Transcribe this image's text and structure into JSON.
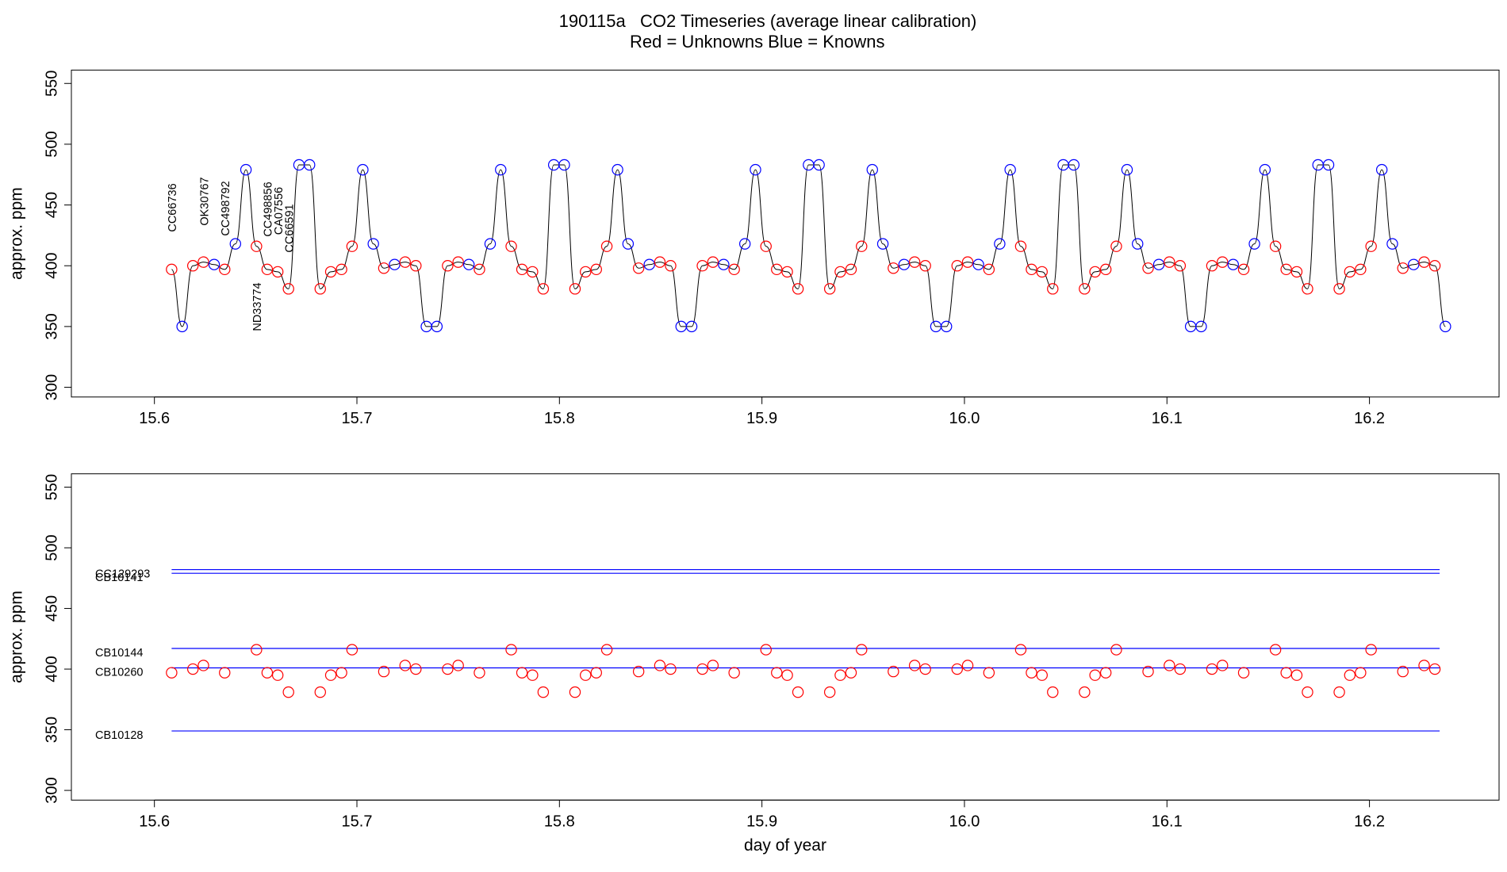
{
  "chart_data": [
    {
      "type": "line",
      "title": "190115a   CO2 Timeseries (average linear calibration)",
      "subtitle_parts": [
        {
          "text": "Red = Unknowns",
          "color": "#ff0000"
        },
        {
          "text": "Blue = Knowns",
          "color": "#0000ff"
        }
      ],
      "ylabel": "approx. ppm",
      "xlim": [
        15.559,
        16.264
      ],
      "ylim": [
        292,
        561
      ],
      "xticks": [
        15.6,
        15.7,
        15.8,
        15.9,
        {
          "value": 16,
          "label": "16.0"
        },
        16.1,
        16.2
      ],
      "yticks": [
        300,
        350,
        400,
        450,
        500,
        550
      ],
      "series": [
        {
          "color": "#000000",
          "x": [
            15.6085,
            15.6137,
            15.619,
            15.6242,
            15.6295,
            15.6347,
            15.64,
            15.6452,
            15.6504,
            15.6557,
            15.6609,
            15.6662,
            15.6714,
            15.6766,
            15.6819,
            15.6871,
            15.6924,
            15.6976,
            15.7029,
            15.7081,
            15.7133,
            15.7186,
            15.7238,
            15.7291,
            15.7343,
            15.7395,
            15.7448,
            15.75,
            15.7553,
            15.7605,
            15.7658,
            15.771,
            15.7762,
            15.7815,
            15.7867,
            15.792,
            15.7972,
            15.8024,
            15.8077,
            15.8129,
            15.8182,
            15.8234,
            15.8287,
            15.8339,
            15.8391,
            15.8444,
            15.8496,
            15.8549,
            15.8601,
            15.8653,
            15.8706,
            15.8758,
            15.8811,
            15.8863,
            15.8916,
            15.8968,
            15.902,
            15.9073,
            15.9125,
            15.9178,
            15.923,
            15.9282,
            15.9335,
            15.9387,
            15.944,
            15.9492,
            15.9545,
            15.9597,
            15.9649,
            15.9702,
            15.9754,
            15.9807,
            15.9859,
            15.9911,
            15.9964,
            16.0016,
            16.0069,
            16.0121,
            16.0174,
            16.0226,
            16.0278,
            16.0331,
            16.0383,
            16.0436,
            16.0488,
            16.054,
            16.0593,
            16.0645,
            16.0698,
            16.075,
            16.0803,
            16.0855,
            16.0907,
            16.096,
            16.1012,
            16.1065,
            16.1117,
            16.1169,
            16.1222,
            16.1274,
            16.1327,
            16.1379,
            16.1432,
            16.1484,
            16.1536,
            16.1589,
            16.1641,
            16.1694,
            16.1746,
            16.1798,
            16.1851,
            16.1903,
            16.1956,
            16.2008,
            16.2061,
            16.2113,
            16.2165,
            16.2218,
            16.227,
            16.2323,
            16.2375
          ],
          "values": [
            397,
            350,
            400,
            403,
            401,
            397,
            418,
            479,
            416,
            397,
            395,
            381,
            483,
            483,
            381,
            395,
            397,
            416,
            479,
            418,
            398,
            401,
            403,
            400,
            350,
            350,
            400,
            403,
            401,
            397,
            418,
            479,
            416,
            397,
            395,
            381,
            483,
            483,
            381,
            395,
            397,
            416,
            479,
            418,
            398,
            401,
            403,
            400,
            350,
            350,
            400,
            403,
            401,
            397,
            418,
            479,
            416,
            397,
            395,
            381,
            483,
            483,
            381,
            395,
            397,
            416,
            479,
            418,
            398,
            401,
            403,
            400,
            350,
            350,
            400,
            403,
            401,
            397,
            418,
            479,
            416,
            397,
            395,
            381,
            483,
            483,
            381,
            395,
            397,
            416,
            479,
            418,
            398,
            401,
            403,
            400,
            350,
            350,
            400,
            403,
            401,
            397,
            418,
            479,
            416,
            397,
            395,
            381,
            483,
            483,
            381,
            395,
            397,
            416,
            479,
            418,
            398,
            401,
            403,
            400,
            350
          ],
          "marker_colors": [
            "#ff0000",
            "#0000ff",
            "#ff0000",
            "#ff0000",
            "#0000ff",
            "#ff0000",
            "#0000ff",
            "#0000ff",
            "#ff0000",
            "#ff0000",
            "#ff0000",
            "#ff0000",
            "#0000ff",
            "#0000ff",
            "#ff0000",
            "#ff0000",
            "#ff0000",
            "#ff0000",
            "#0000ff",
            "#0000ff",
            "#ff0000",
            "#0000ff",
            "#ff0000",
            "#ff0000",
            "#0000ff",
            "#0000ff",
            "#ff0000",
            "#ff0000",
            "#0000ff",
            "#ff0000",
            "#0000ff",
            "#0000ff",
            "#ff0000",
            "#ff0000",
            "#ff0000",
            "#ff0000",
            "#0000ff",
            "#0000ff",
            "#ff0000",
            "#ff0000",
            "#ff0000",
            "#ff0000",
            "#0000ff",
            "#0000ff",
            "#ff0000",
            "#0000ff",
            "#ff0000",
            "#ff0000",
            "#0000ff",
            "#0000ff",
            "#ff0000",
            "#ff0000",
            "#0000ff",
            "#ff0000",
            "#0000ff",
            "#0000ff",
            "#ff0000",
            "#ff0000",
            "#ff0000",
            "#ff0000",
            "#0000ff",
            "#0000ff",
            "#ff0000",
            "#ff0000",
            "#ff0000",
            "#ff0000",
            "#0000ff",
            "#0000ff",
            "#ff0000",
            "#0000ff",
            "#ff0000",
            "#ff0000",
            "#0000ff",
            "#0000ff",
            "#ff0000",
            "#ff0000",
            "#0000ff",
            "#ff0000",
            "#0000ff",
            "#0000ff",
            "#ff0000",
            "#ff0000",
            "#ff0000",
            "#ff0000",
            "#0000ff",
            "#0000ff",
            "#ff0000",
            "#ff0000",
            "#ff0000",
            "#ff0000",
            "#0000ff",
            "#0000ff",
            "#ff0000",
            "#0000ff",
            "#ff0000",
            "#ff0000",
            "#0000ff",
            "#0000ff",
            "#ff0000",
            "#ff0000",
            "#0000ff",
            "#ff0000",
            "#0000ff",
            "#0000ff",
            "#ff0000",
            "#ff0000",
            "#ff0000",
            "#ff0000",
            "#0000ff",
            "#0000ff",
            "#ff0000",
            "#ff0000",
            "#ff0000",
            "#ff0000",
            "#0000ff",
            "#0000ff",
            "#ff0000",
            "#0000ff",
            "#ff0000",
            "#ff0000",
            "#0000ff"
          ]
        }
      ],
      "annotations": [
        {
          "text": "CC66736",
          "x": 15.6085
        },
        {
          "text": "OK30767",
          "x": 15.6242
        },
        {
          "text": "CC498792",
          "x": 15.6347
        },
        {
          "text": "ND33774",
          "x": 15.6504
        },
        {
          "text": "CC498856",
          "x": 15.6557
        },
        {
          "text": "CA07556",
          "x": 15.6609
        },
        {
          "text": "CC66591",
          "x": 15.6662
        }
      ],
      "annotation_color": "#ff0000"
    },
    {
      "type": "scatter",
      "xlabel": "day of year",
      "ylabel": "approx. ppm",
      "xlim": [
        15.559,
        16.264
      ],
      "ylim": [
        292,
        561
      ],
      "xticks": [
        15.6,
        15.7,
        15.8,
        15.9,
        {
          "value": 16,
          "label": "16.0"
        },
        16.1,
        16.2
      ],
      "yticks": [
        300,
        350,
        400,
        450,
        500,
        550
      ],
      "series": [
        {
          "color": "#ff0000",
          "x": [
            15.6085,
            15.619,
            15.6242,
            15.6347,
            15.6504,
            15.6557,
            15.6609,
            15.6662,
            15.6819,
            15.6871,
            15.6924,
            15.6976,
            15.7133,
            15.7238,
            15.7291,
            15.7448,
            15.75,
            15.7605,
            15.7762,
            15.7815,
            15.7867,
            15.792,
            15.8077,
            15.8129,
            15.8182,
            15.8234,
            15.8391,
            15.8496,
            15.8549,
            15.8706,
            15.8758,
            15.8863,
            15.902,
            15.9073,
            15.9125,
            15.9178,
            15.9335,
            15.9387,
            15.944,
            15.9492,
            15.9649,
            15.9754,
            15.9807,
            15.9964,
            16.0016,
            16.0121,
            16.0278,
            16.0331,
            16.0383,
            16.0436,
            16.0593,
            16.0645,
            16.0698,
            16.075,
            16.0907,
            16.1012,
            16.1065,
            16.1222,
            16.1274,
            16.1379,
            16.1536,
            16.1589,
            16.1641,
            16.1694,
            16.1851,
            16.1903,
            16.1956,
            16.2008,
            16.2165,
            16.227,
            16.2323
          ],
          "values": [
            397,
            400,
            403,
            397,
            416,
            397,
            395,
            381,
            381,
            395,
            397,
            416,
            398,
            403,
            400,
            400,
            403,
            397,
            416,
            397,
            395,
            381,
            381,
            395,
            397,
            416,
            398,
            403,
            400,
            400,
            403,
            397,
            416,
            397,
            395,
            381,
            381,
            395,
            397,
            416,
            398,
            403,
            400,
            400,
            403,
            397,
            416,
            397,
            395,
            381,
            381,
            395,
            397,
            416,
            398,
            403,
            400,
            400,
            403,
            397,
            416,
            397,
            395,
            381,
            381,
            395,
            397,
            416,
            398,
            403,
            400
          ]
        }
      ],
      "reference_lines": [
        {
          "label": "CC129293",
          "value": 482,
          "color": "#0000ff"
        },
        {
          "label": "CB10141",
          "value": 479,
          "color": "#0000ff"
        },
        {
          "label": "CB10144",
          "value": 417,
          "color": "#0000ff"
        },
        {
          "label": "CB10260",
          "value": 401,
          "color": "#0000ff"
        },
        {
          "label": "CB10128",
          "value": 349,
          "color": "#0000ff"
        }
      ]
    }
  ]
}
